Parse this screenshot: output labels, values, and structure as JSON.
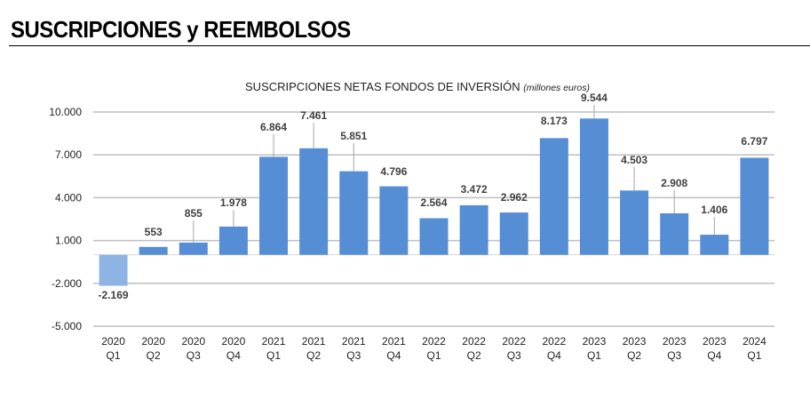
{
  "header": {
    "title": "SUSCRIPCIONES y REEMBOLSOS"
  },
  "chart_data": {
    "type": "bar",
    "title": "SUSCRIPCIONES NETAS FONDOS DE INVERSIÓN",
    "subtitle": "(millones euros)",
    "xlabel": "",
    "ylabel": "",
    "ylim": [
      -5000,
      10000
    ],
    "yticks": [
      -5000,
      -2000,
      1000,
      4000,
      7000,
      10000
    ],
    "ytick_labels": [
      "-5.000",
      "-2.000",
      "1.000",
      "4.000",
      "7.000",
      "10.000"
    ],
    "grid": true,
    "categories": [
      [
        "2020",
        "Q1"
      ],
      [
        "2020",
        "Q2"
      ],
      [
        "2020",
        "Q3"
      ],
      [
        "2020",
        "Q4"
      ],
      [
        "2021",
        "Q1"
      ],
      [
        "2021",
        "Q2"
      ],
      [
        "2021",
        "Q3"
      ],
      [
        "2021",
        "Q4"
      ],
      [
        "2022",
        "Q1"
      ],
      [
        "2022",
        "Q2"
      ],
      [
        "2022",
        "Q3"
      ],
      [
        "2022",
        "Q4"
      ],
      [
        "2023",
        "Q1"
      ],
      [
        "2023",
        "Q2"
      ],
      [
        "2023",
        "Q3"
      ],
      [
        "2023",
        "Q4"
      ],
      [
        "2024",
        "Q1"
      ]
    ],
    "values": [
      -2169,
      553,
      855,
      1978,
      6864,
      7461,
      5851,
      4796,
      2564,
      3472,
      2962,
      8173,
      9544,
      4503,
      2908,
      1406,
      6797
    ],
    "value_labels": [
      "-2.169",
      "553",
      "855",
      "1.978",
      "6.864",
      "7.461",
      "5.851",
      "4.796",
      "2.564",
      "3.472",
      "2.962",
      "8.173",
      "9.544",
      "4.503",
      "2.908",
      "1.406",
      "6.797"
    ],
    "colors": {
      "positive": "#558ED5",
      "negative": "#8EB4E3"
    }
  }
}
